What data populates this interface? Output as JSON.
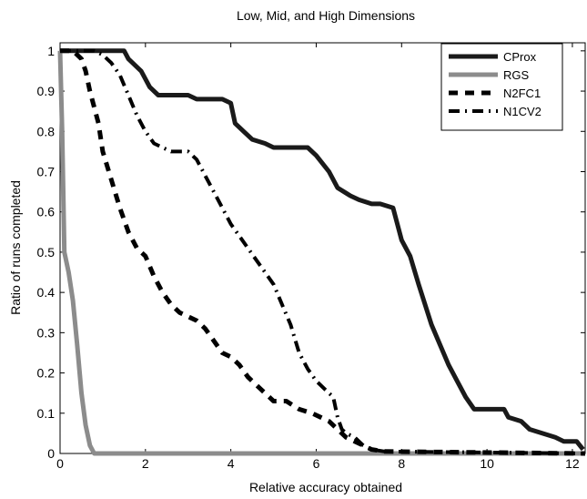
{
  "chart_data": {
    "type": "line",
    "title": "Low, Mid, and High Dimensions",
    "xlabel": "Relative accuracy obtained",
    "ylabel": "Ratio of runs completed",
    "xlim": [
      0,
      12.3
    ],
    "ylim": [
      0,
      1.02
    ],
    "xticks": [
      0,
      2,
      4,
      6,
      8,
      10,
      12
    ],
    "xtick_labels": [
      "0",
      "2",
      "4",
      "6",
      "8",
      "10",
      "12"
    ],
    "yticks": [
      0,
      0.1,
      0.2,
      0.3,
      0.4,
      0.5,
      0.6,
      0.7,
      0.8,
      0.9,
      1
    ],
    "ytick_labels": [
      "0",
      "0.1",
      "0.2",
      "0.3",
      "0.4",
      "0.5",
      "0.6",
      "0.7",
      "0.8",
      "0.9",
      "1"
    ],
    "grid": false,
    "legend_position": "top-right",
    "series": [
      {
        "name": "CProx",
        "color": "#1a1a1a",
        "style": "solid",
        "x": [
          0,
          1.5,
          1.6,
          1.9,
          2.1,
          2.3,
          2.5,
          3.0,
          3.2,
          3.5,
          3.8,
          4.0,
          4.1,
          4.3,
          4.5,
          4.8,
          5.0,
          5.8,
          6.0,
          6.3,
          6.5,
          6.8,
          7.0,
          7.3,
          7.5,
          7.8,
          7.9,
          8.0,
          8.2,
          8.4,
          8.7,
          8.9,
          9.1,
          9.3,
          9.5,
          9.7,
          9.9,
          10.4,
          10.5,
          10.8,
          11.0,
          11.3,
          11.6,
          11.8,
          12.1,
          12.25
        ],
        "y": [
          1.0,
          1.0,
          0.98,
          0.95,
          0.91,
          0.89,
          0.89,
          0.89,
          0.88,
          0.88,
          0.88,
          0.87,
          0.82,
          0.8,
          0.78,
          0.77,
          0.76,
          0.76,
          0.74,
          0.7,
          0.66,
          0.64,
          0.63,
          0.62,
          0.62,
          0.61,
          0.57,
          0.53,
          0.49,
          0.42,
          0.32,
          0.27,
          0.22,
          0.18,
          0.14,
          0.11,
          0.11,
          0.11,
          0.09,
          0.08,
          0.06,
          0.05,
          0.04,
          0.03,
          0.03,
          0.01
        ]
      },
      {
        "name": "RGS",
        "color": "#8c8c8c",
        "style": "solid",
        "x": [
          0,
          0.05,
          0.1,
          0.2,
          0.3,
          0.4,
          0.5,
          0.6,
          0.7,
          0.8,
          1.0,
          12.3
        ],
        "y": [
          1.0,
          0.8,
          0.5,
          0.45,
          0.38,
          0.27,
          0.15,
          0.07,
          0.02,
          0.0,
          0.0,
          0.0
        ]
      },
      {
        "name": "N2FC1",
        "color": "#000000",
        "style": "dashed",
        "x": [
          0,
          0.3,
          0.5,
          0.6,
          0.7,
          0.8,
          0.9,
          1.0,
          1.2,
          1.4,
          1.6,
          1.8,
          2.0,
          2.2,
          2.4,
          2.6,
          2.8,
          3.0,
          3.2,
          3.4,
          3.6,
          3.8,
          4.0,
          4.2,
          4.4,
          4.7,
          5.0,
          5.3,
          5.6,
          5.9,
          6.1,
          6.3,
          6.5,
          6.7,
          6.9,
          7.1,
          7.3,
          7.6,
          12.3
        ],
        "y": [
          1.0,
          1.0,
          0.98,
          0.95,
          0.9,
          0.86,
          0.82,
          0.75,
          0.68,
          0.61,
          0.55,
          0.51,
          0.49,
          0.44,
          0.4,
          0.37,
          0.35,
          0.34,
          0.33,
          0.31,
          0.28,
          0.25,
          0.24,
          0.22,
          0.19,
          0.16,
          0.13,
          0.13,
          0.11,
          0.1,
          0.09,
          0.08,
          0.06,
          0.04,
          0.03,
          0.02,
          0.01,
          0.005,
          0.0
        ]
      },
      {
        "name": "N1CV2",
        "color": "#000000",
        "style": "dashdot",
        "x": [
          0,
          0.6,
          0.8,
          1.0,
          1.2,
          1.4,
          1.6,
          1.8,
          2.0,
          2.2,
          2.4,
          2.6,
          2.8,
          3.0,
          3.2,
          3.4,
          3.6,
          3.8,
          4.0,
          4.2,
          4.4,
          4.6,
          4.8,
          5.0,
          5.2,
          5.4,
          5.6,
          5.8,
          6.0,
          6.2,
          6.4,
          6.5,
          6.6,
          6.7,
          6.9,
          7.1,
          7.3,
          7.6,
          12.3
        ],
        "y": [
          1.0,
          1.0,
          1.0,
          0.99,
          0.97,
          0.94,
          0.89,
          0.84,
          0.8,
          0.77,
          0.76,
          0.75,
          0.75,
          0.75,
          0.73,
          0.69,
          0.65,
          0.61,
          0.57,
          0.54,
          0.51,
          0.48,
          0.45,
          0.42,
          0.37,
          0.32,
          0.25,
          0.21,
          0.18,
          0.16,
          0.14,
          0.09,
          0.06,
          0.05,
          0.04,
          0.02,
          0.01,
          0.005,
          0.0
        ]
      }
    ]
  }
}
